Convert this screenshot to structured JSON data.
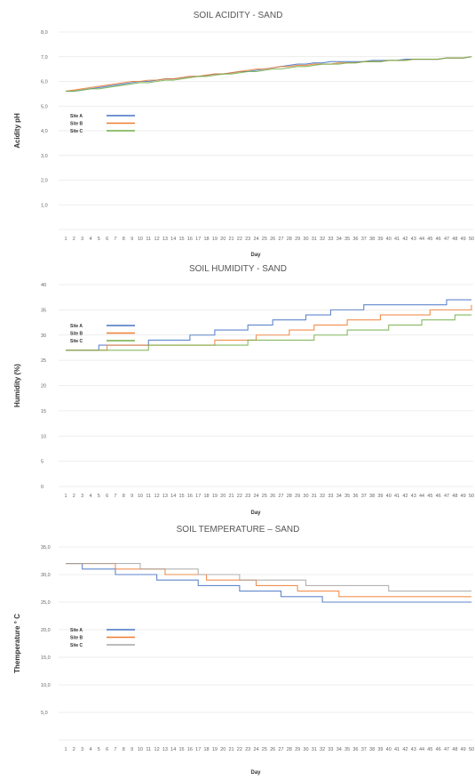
{
  "chart_data": [
    {
      "type": "line",
      "title": "SOIL ACIDITY - SAND",
      "xlabel": "Day",
      "ylabel": "Acidity pH",
      "ylim": [
        0,
        8
      ],
      "yticks": [
        "",
        "1,0",
        "2,0",
        "3,0",
        "4,0",
        "5,0",
        "6,0",
        "7,0",
        "8,0"
      ],
      "x": [
        1,
        2,
        3,
        4,
        5,
        6,
        7,
        8,
        9,
        10,
        11,
        12,
        13,
        14,
        15,
        16,
        17,
        18,
        19,
        20,
        21,
        22,
        23,
        24,
        25,
        26,
        27,
        28,
        29,
        30,
        31,
        32,
        33,
        34,
        35,
        36,
        37,
        38,
        39,
        40,
        41,
        42,
        43,
        44,
        45,
        46,
        47,
        48,
        49,
        50
      ],
      "legend": "left",
      "grid": true,
      "series": [
        {
          "name": "Site A",
          "color": "#4472c4",
          "values": [
            5.6,
            5.6,
            5.65,
            5.7,
            5.75,
            5.8,
            5.85,
            5.9,
            5.95,
            6.0,
            6.0,
            6.05,
            6.1,
            6.1,
            6.15,
            6.2,
            6.2,
            6.25,
            6.3,
            6.3,
            6.35,
            6.4,
            6.4,
            6.45,
            6.5,
            6.55,
            6.6,
            6.65,
            6.7,
            6.7,
            6.75,
            6.75,
            6.8,
            6.8,
            6.8,
            6.8,
            6.8,
            6.85,
            6.85,
            6.85,
            6.85,
            6.9,
            6.9,
            6.9,
            6.9,
            6.9,
            6.95,
            6.95,
            6.95,
            7.0
          ]
        },
        {
          "name": "Site B",
          "color": "#ed7d31",
          "values": [
            5.6,
            5.65,
            5.7,
            5.75,
            5.8,
            5.85,
            5.9,
            5.95,
            6.0,
            6.0,
            6.05,
            6.05,
            6.1,
            6.1,
            6.15,
            6.2,
            6.2,
            6.25,
            6.3,
            6.3,
            6.35,
            6.4,
            6.45,
            6.5,
            6.5,
            6.55,
            6.6,
            6.6,
            6.65,
            6.65,
            6.7,
            6.7,
            6.7,
            6.75,
            6.75,
            6.75,
            6.8,
            6.8,
            6.8,
            6.85,
            6.85,
            6.85,
            6.9,
            6.9,
            6.9,
            6.9,
            6.95,
            6.95,
            6.95,
            7.0
          ]
        },
        {
          "name": "Site C",
          "color": "#70ad47",
          "values": [
            5.6,
            5.6,
            5.65,
            5.7,
            5.7,
            5.75,
            5.8,
            5.85,
            5.9,
            5.95,
            5.95,
            6.0,
            6.05,
            6.05,
            6.1,
            6.15,
            6.2,
            6.2,
            6.25,
            6.3,
            6.3,
            6.35,
            6.4,
            6.4,
            6.45,
            6.5,
            6.5,
            6.55,
            6.6,
            6.6,
            6.65,
            6.7,
            6.7,
            6.7,
            6.75,
            6.75,
            6.8,
            6.8,
            6.8,
            6.85,
            6.85,
            6.85,
            6.9,
            6.9,
            6.9,
            6.9,
            6.95,
            6.95,
            6.95,
            7.0
          ]
        }
      ]
    },
    {
      "type": "line",
      "title": "SOIL HUMIDITY - SAND",
      "xlabel": "Day",
      "ylabel": "Humidity (%)",
      "ylim": [
        0,
        40
      ],
      "yticks": [
        "0",
        "5",
        "10",
        "15",
        "20",
        "25",
        "30",
        "35",
        "40"
      ],
      "x": [
        1,
        2,
        3,
        4,
        5,
        6,
        7,
        8,
        9,
        10,
        11,
        12,
        13,
        14,
        15,
        16,
        17,
        18,
        19,
        20,
        21,
        22,
        23,
        24,
        25,
        26,
        27,
        28,
        29,
        30,
        31,
        32,
        33,
        34,
        35,
        36,
        37,
        38,
        39,
        40,
        41,
        42,
        43,
        44,
        45,
        46,
        47,
        48,
        49,
        50
      ],
      "legend": "left",
      "grid": true,
      "series": [
        {
          "name": "Site A",
          "color": "#4472c4",
          "values": [
            27,
            27,
            27,
            27,
            28,
            28,
            28,
            28,
            28,
            28,
            29,
            29,
            29,
            29,
            29,
            30,
            30,
            30,
            31,
            31,
            31,
            31,
            32,
            32,
            32,
            33,
            33,
            33,
            33,
            34,
            34,
            34,
            35,
            35,
            35,
            35,
            36,
            36,
            36,
            36,
            36,
            36,
            36,
            36,
            36,
            36,
            37,
            37,
            37,
            37
          ]
        },
        {
          "name": "Site B",
          "color": "#ed7d31",
          "values": [
            27,
            27,
            27,
            27,
            27,
            28,
            28,
            28,
            28,
            28,
            28,
            28,
            28,
            28,
            28,
            28,
            28,
            28,
            29,
            29,
            29,
            29,
            29,
            30,
            30,
            30,
            30,
            31,
            31,
            31,
            32,
            32,
            32,
            32,
            33,
            33,
            33,
            33,
            34,
            34,
            34,
            34,
            34,
            34,
            35,
            35,
            35,
            35,
            35,
            36
          ]
        },
        {
          "name": "Site C",
          "color": "#70ad47",
          "values": [
            27,
            27,
            27,
            27,
            27,
            27,
            27,
            27,
            27,
            27,
            28,
            28,
            28,
            28,
            28,
            28,
            28,
            28,
            28,
            28,
            28,
            28,
            29,
            29,
            29,
            29,
            29,
            29,
            29,
            29,
            30,
            30,
            30,
            30,
            31,
            31,
            31,
            31,
            31,
            32,
            32,
            32,
            32,
            33,
            33,
            33,
            33,
            34,
            34,
            34
          ]
        }
      ]
    },
    {
      "type": "line",
      "title": "SOIL TEMPERATURE – SAND",
      "xlabel": "Day",
      "ylabel": "Themperature ° C",
      "ylim": [
        0,
        35
      ],
      "yticks": [
        "",
        "5,0",
        "10,0",
        "15,0",
        "20,0",
        "25,0",
        "30,0",
        "35,0"
      ],
      "x": [
        1,
        2,
        3,
        4,
        5,
        6,
        7,
        8,
        9,
        10,
        11,
        12,
        13,
        14,
        15,
        16,
        17,
        18,
        19,
        20,
        21,
        22,
        23,
        24,
        25,
        26,
        27,
        28,
        29,
        30,
        31,
        32,
        33,
        34,
        35,
        36,
        37,
        38,
        39,
        40,
        41,
        42,
        43,
        44,
        45,
        46,
        47,
        48,
        49,
        50
      ],
      "legend": "left",
      "grid": true,
      "series": [
        {
          "name": "Site A",
          "color": "#4472c4",
          "values": [
            32,
            32,
            31,
            31,
            31,
            31,
            30,
            30,
            30,
            30,
            30,
            29,
            29,
            29,
            29,
            29,
            28,
            28,
            28,
            28,
            28,
            27,
            27,
            27,
            27,
            27,
            26,
            26,
            26,
            26,
            26,
            25,
            25,
            25,
            25,
            25,
            25,
            25,
            25,
            25,
            25,
            25,
            25,
            25,
            25,
            25,
            25,
            25,
            25,
            25
          ]
        },
        {
          "name": "Site B",
          "color": "#ed7d31",
          "values": [
            32,
            32,
            32,
            32,
            32,
            32,
            31,
            31,
            31,
            31,
            31,
            31,
            30,
            30,
            30,
            30,
            30,
            29,
            29,
            29,
            29,
            29,
            29,
            28,
            28,
            28,
            28,
            28,
            27,
            27,
            27,
            27,
            27,
            26,
            26,
            26,
            26,
            26,
            26,
            26,
            26,
            26,
            26,
            26,
            26,
            26,
            26,
            26,
            26,
            26
          ]
        },
        {
          "name": "Site C",
          "color": "#a5a5a5",
          "values": [
            32,
            32,
            32,
            32,
            32,
            32,
            32,
            32,
            32,
            31,
            31,
            31,
            31,
            31,
            31,
            31,
            30,
            30,
            30,
            30,
            30,
            29,
            29,
            29,
            29,
            29,
            29,
            29,
            29,
            28,
            28,
            28,
            28,
            28,
            28,
            28,
            28,
            28,
            28,
            27,
            27,
            27,
            27,
            27,
            27,
            27,
            27,
            27,
            27,
            27
          ]
        }
      ]
    }
  ]
}
